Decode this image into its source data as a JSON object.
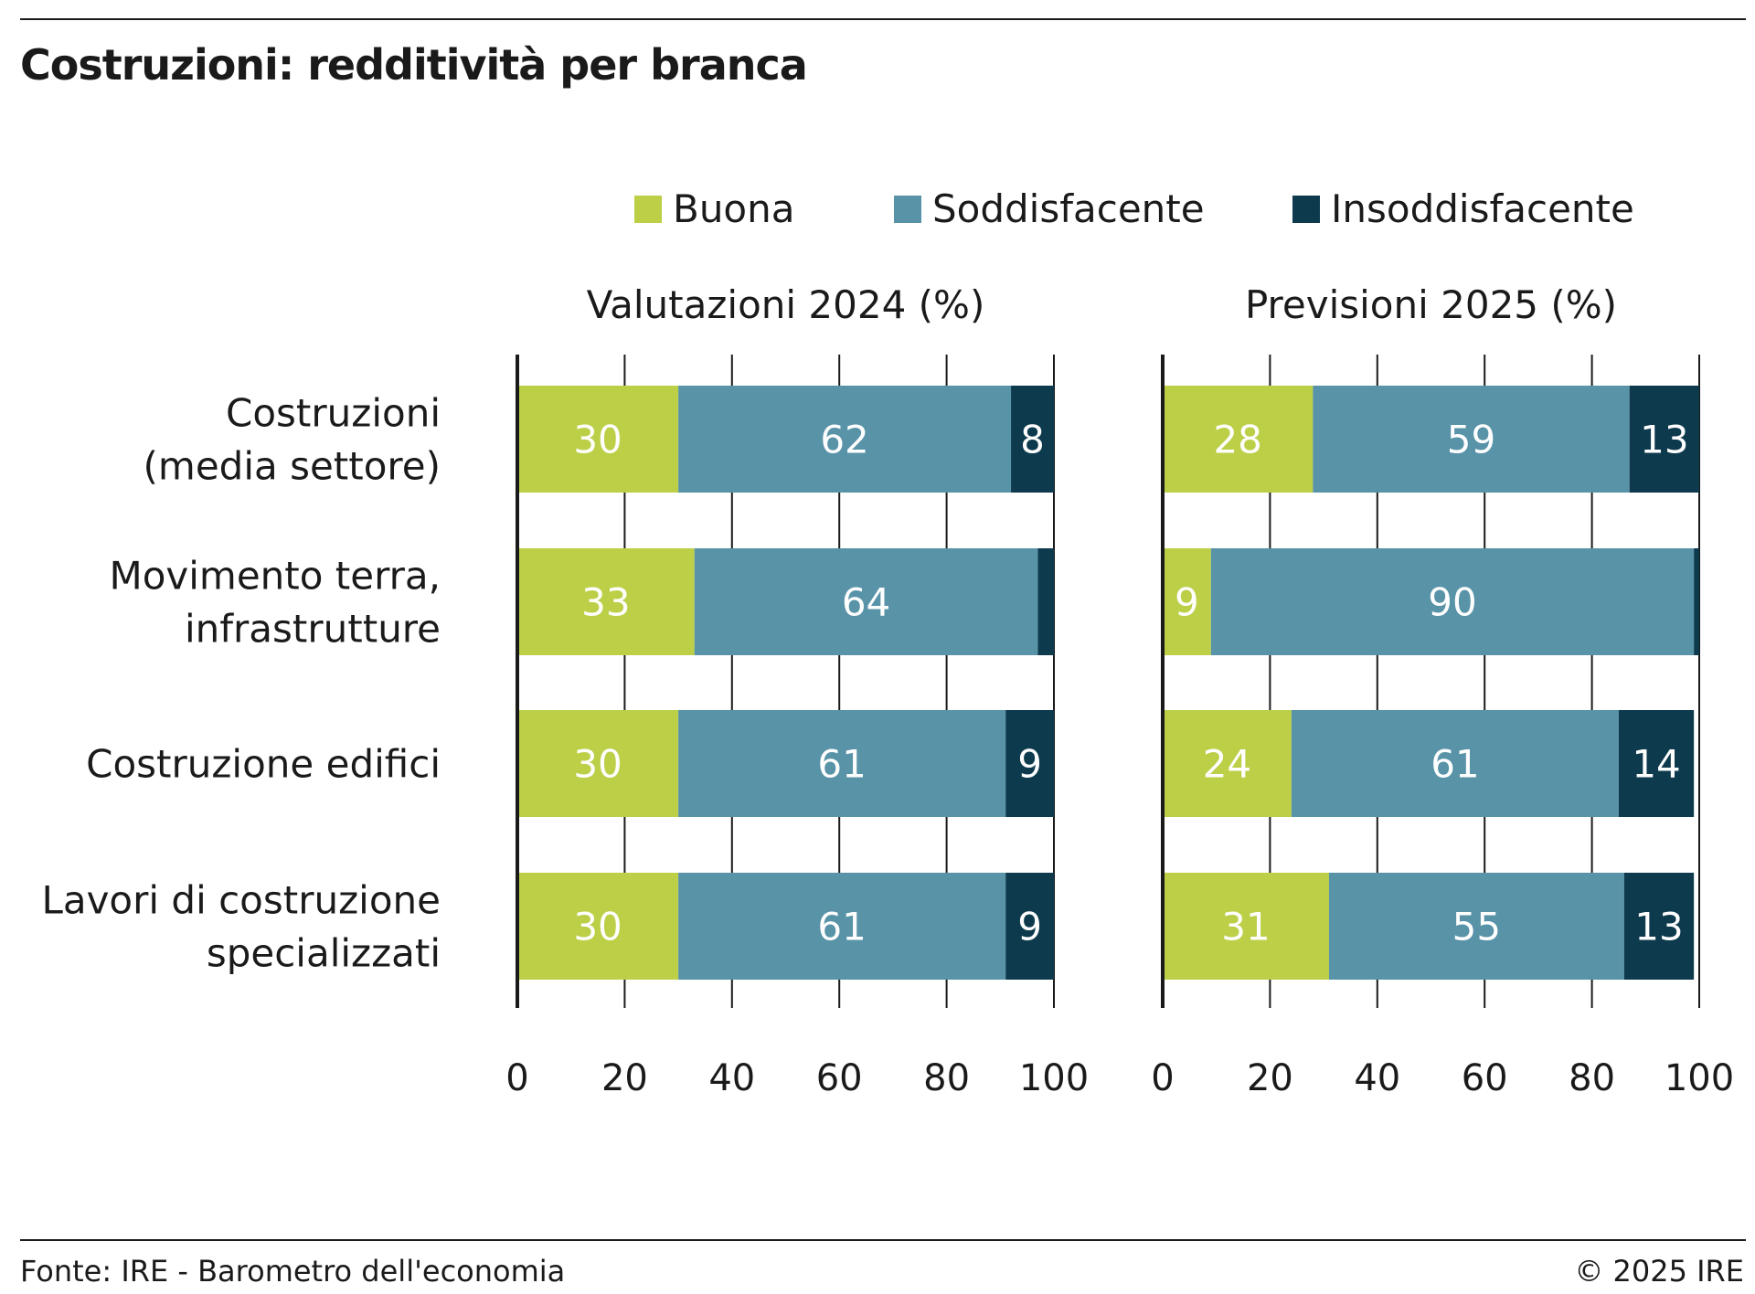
{
  "title": "Costruzioni: redditività per branca",
  "legend": [
    {
      "label": "Buona",
      "color": "#bccf47"
    },
    {
      "label": "Soddisfacente",
      "color": "#5893a8"
    },
    {
      "label": "Insoddisfacente",
      "color": "#0d3a4d"
    }
  ],
  "chart_data": {
    "type": "bar",
    "orientation": "horizontal",
    "stacked": true,
    "categories": [
      [
        "Costruzioni",
        "(media settore)"
      ],
      [
        "Movimento terra,",
        "infrastrutture"
      ],
      [
        "Costruzione edifici"
      ],
      [
        "Lavori di costruzione",
        "specializzati"
      ]
    ],
    "panels": [
      {
        "title": "Valutazioni 2024 (%)",
        "series": [
          {
            "name": "Buona",
            "values": [
              30,
              33,
              30,
              30
            ]
          },
          {
            "name": "Soddisfacente",
            "values": [
              62,
              64,
              61,
              61
            ]
          },
          {
            "name": "Insoddisfacente",
            "values": [
              8,
              3,
              9,
              9
            ]
          }
        ],
        "value_labels": [
          [
            "30",
            "62",
            "8"
          ],
          [
            "33",
            "64",
            ""
          ],
          [
            "30",
            "61",
            "9"
          ],
          [
            "30",
            "61",
            "9"
          ]
        ]
      },
      {
        "title": "Previsioni 2025 (%)",
        "series": [
          {
            "name": "Buona",
            "values": [
              28,
              9,
              24,
              31
            ]
          },
          {
            "name": "Soddisfacente",
            "values": [
              59,
              90,
              61,
              55
            ]
          },
          {
            "name": "Insoddisfacente",
            "values": [
              13,
              1,
              14,
              13
            ]
          }
        ],
        "value_labels": [
          [
            "28",
            "59",
            "13"
          ],
          [
            "9",
            "90",
            ""
          ],
          [
            "24",
            "61",
            "14"
          ],
          [
            "31",
            "55",
            "13"
          ]
        ]
      }
    ],
    "xlim": [
      0,
      100
    ],
    "xticks": [
      "0",
      "20",
      "40",
      "60",
      "80",
      "100"
    ],
    "grid": true,
    "legend_position": "top"
  },
  "footer": {
    "source": "Fonte: IRE - Barometro dell'economia",
    "copyright": "© 2025 IRE"
  }
}
